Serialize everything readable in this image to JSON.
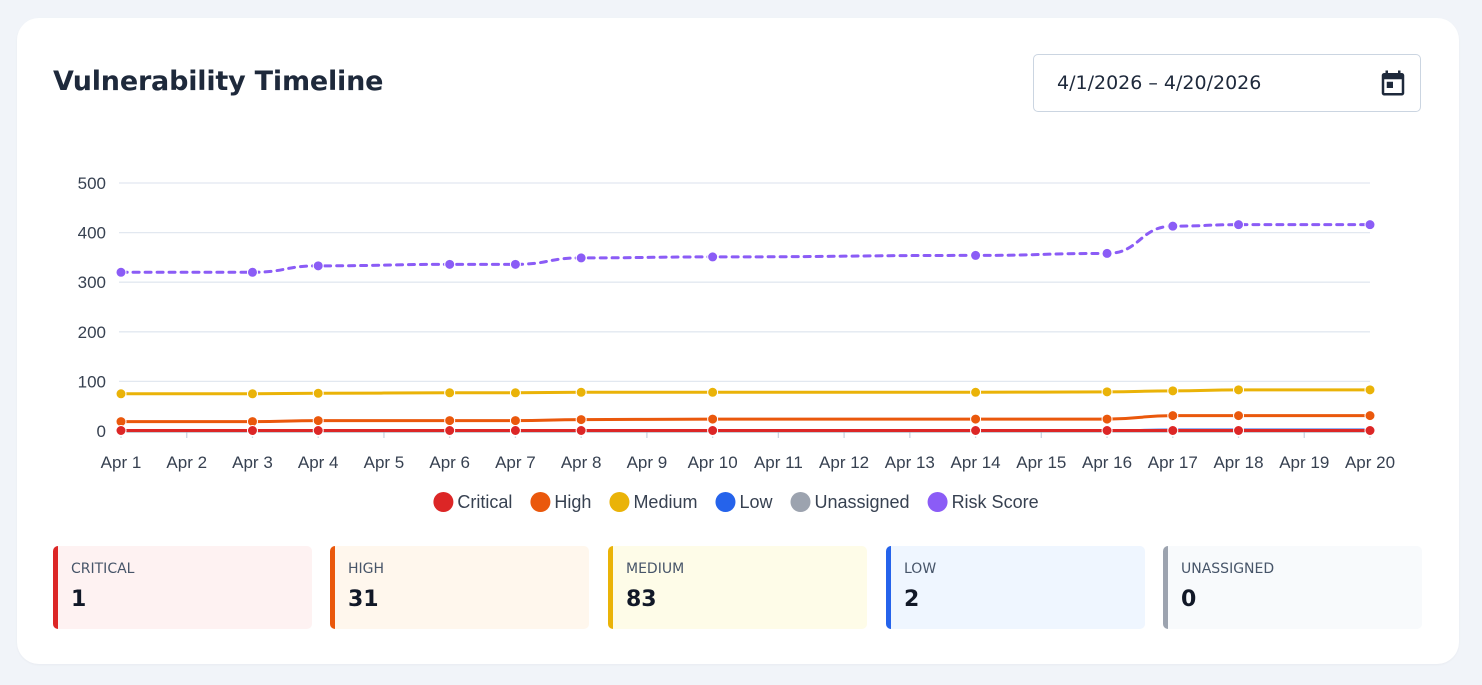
{
  "header": {
    "title": "Vulnerability Timeline",
    "date_range": "4/1/2026 – 4/20/2026",
    "calendar_icon": "calendar-icon"
  },
  "chart_data": {
    "type": "line",
    "title": "",
    "xlabel": "",
    "ylabel": "",
    "categories": [
      "Apr 1",
      "Apr 2",
      "Apr 3",
      "Apr 4",
      "Apr 5",
      "Apr 6",
      "Apr 7",
      "Apr 8",
      "Apr 9",
      "Apr 10",
      "Apr 11",
      "Apr 12",
      "Apr 13",
      "Apr 14",
      "Apr 15",
      "Apr 16",
      "Apr 17",
      "Apr 18",
      "Apr 19",
      "Apr 20"
    ],
    "ylim": [
      0,
      500
    ],
    "yticks": [
      0,
      100,
      200,
      300,
      400,
      500
    ],
    "grid": true,
    "legend_position": "bottom",
    "series": [
      {
        "name": "Critical",
        "color": "#dc2626",
        "points": [
          [
            1,
            1
          ],
          [
            3,
            1
          ],
          [
            4,
            1
          ],
          [
            6,
            1
          ],
          [
            7,
            1
          ],
          [
            8,
            1
          ],
          [
            10,
            1
          ],
          [
            14,
            1
          ],
          [
            16,
            1
          ],
          [
            17,
            1
          ],
          [
            18,
            1
          ],
          [
            20,
            1
          ]
        ]
      },
      {
        "name": "High",
        "color": "#ea580c",
        "points": [
          [
            1,
            19
          ],
          [
            3,
            19
          ],
          [
            4,
            21
          ],
          [
            6,
            21
          ],
          [
            7,
            21
          ],
          [
            8,
            23
          ],
          [
            10,
            24
          ],
          [
            14,
            24
          ],
          [
            16,
            24
          ],
          [
            17,
            31
          ],
          [
            18,
            31
          ],
          [
            20,
            31
          ]
        ]
      },
      {
        "name": "Medium",
        "color": "#eab308",
        "points": [
          [
            1,
            75
          ],
          [
            3,
            75
          ],
          [
            4,
            76
          ],
          [
            6,
            77
          ],
          [
            7,
            77
          ],
          [
            8,
            78
          ],
          [
            10,
            78
          ],
          [
            14,
            78
          ],
          [
            16,
            79
          ],
          [
            17,
            81
          ],
          [
            18,
            83
          ],
          [
            20,
            83
          ]
        ]
      },
      {
        "name": "Low",
        "color": "#2563eb",
        "points": [
          [
            1,
            0
          ],
          [
            3,
            0
          ],
          [
            4,
            0
          ],
          [
            6,
            0
          ],
          [
            7,
            0
          ],
          [
            8,
            0
          ],
          [
            10,
            0
          ],
          [
            14,
            0
          ],
          [
            16,
            0
          ],
          [
            17,
            2
          ],
          [
            18,
            2
          ],
          [
            20,
            2
          ]
        ]
      },
      {
        "name": "Unassigned",
        "color": "#9ca3af",
        "points": [
          [
            1,
            0
          ],
          [
            3,
            0
          ],
          [
            4,
            0
          ],
          [
            6,
            0
          ],
          [
            7,
            0
          ],
          [
            8,
            0
          ],
          [
            10,
            0
          ],
          [
            14,
            0
          ],
          [
            16,
            0
          ],
          [
            17,
            0
          ],
          [
            18,
            0
          ],
          [
            20,
            0
          ]
        ]
      },
      {
        "name": "Risk Score",
        "color": "#8b5cf6",
        "dashed": true,
        "points": [
          [
            1,
            320
          ],
          [
            3,
            320
          ],
          [
            4,
            333
          ],
          [
            6,
            336
          ],
          [
            7,
            336
          ],
          [
            8,
            349
          ],
          [
            10,
            351
          ],
          [
            14,
            354
          ],
          [
            16,
            358
          ],
          [
            17,
            413
          ],
          [
            18,
            416
          ],
          [
            20,
            416
          ]
        ]
      }
    ]
  },
  "stats": [
    {
      "label": "CRITICAL",
      "value": "1",
      "color": "#dc2626",
      "bg": "#fef2f2"
    },
    {
      "label": "HIGH",
      "value": "31",
      "color": "#ea580c",
      "bg": "#fff7ed"
    },
    {
      "label": "MEDIUM",
      "value": "83",
      "color": "#eab308",
      "bg": "#fefce8"
    },
    {
      "label": "LOW",
      "value": "2",
      "color": "#2563eb",
      "bg": "#eff6ff"
    },
    {
      "label": "UNASSIGNED",
      "value": "0",
      "color": "#9ca3af",
      "bg": "#f8fafc"
    }
  ]
}
